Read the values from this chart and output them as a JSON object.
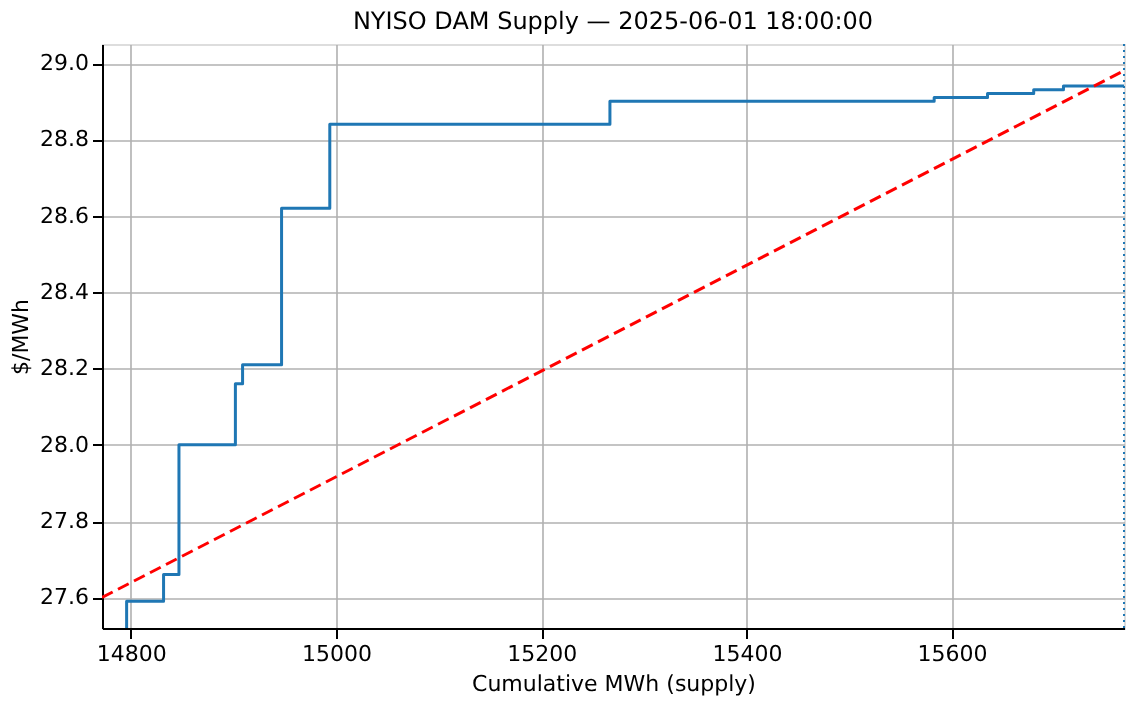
{
  "chart_data": {
    "type": "step",
    "title": "NYISO DAM Supply — 2025-06-01 18:00:00",
    "xlabel": "Cumulative MWh (supply)",
    "ylabel": "$/MWh",
    "xlim": [
      14772,
      15768
    ],
    "xticks": [
      14800,
      15000,
      15200,
      15400,
      15600
    ],
    "ylim": [
      27.52,
      29.05
    ],
    "yticks": [
      {
        "value": 27.6,
        "label": "27.6"
      },
      {
        "value": 27.8,
        "label": "27.8"
      },
      {
        "value": 28.0,
        "label": "28.0"
      },
      {
        "value": 28.2,
        "label": "28.2"
      },
      {
        "value": 28.4,
        "label": "28.4"
      },
      {
        "value": 28.6,
        "label": "28.6"
      },
      {
        "value": 28.8,
        "label": "28.8"
      },
      {
        "value": 29.0,
        "label": "29.0"
      }
    ],
    "grid": true,
    "series": [
      {
        "color": "#1f77b4",
        "line_style": "solid",
        "x": [
          14796,
          14796,
          14832,
          14847,
          14902,
          14909,
          14947,
          14994,
          15267,
          15583,
          15635,
          15680,
          15709,
          15768
        ],
        "values": [
          27.52,
          27.59,
          27.66,
          28.0,
          28.16,
          28.21,
          28.62,
          28.84,
          28.9,
          28.91,
          28.92,
          28.93,
          28.94,
          28.94
        ]
      },
      {
        "type": "line",
        "color": "#ff0000",
        "line_style": "dashed",
        "x": [
          14772,
          15768
        ],
        "values": [
          27.6,
          28.98
        ]
      }
    ],
    "ref_lines": [
      {
        "axis": "x",
        "value": 15768,
        "color": "#1f77b4",
        "line_style": "dotted"
      }
    ]
  }
}
